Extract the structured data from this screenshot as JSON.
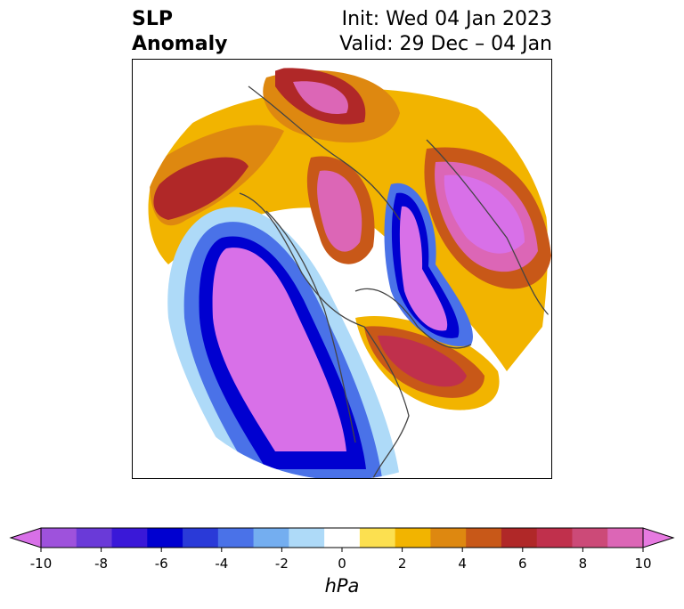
{
  "title": {
    "left_line1": "SLP",
    "left_line2": "Anomaly",
    "init": "Init: Wed 04 Jan 2023",
    "valid": "Valid: 29 Dec – 04 Jan"
  },
  "colorbar": {
    "units": "hPa",
    "range": [
      -10,
      10
    ],
    "ticks": [
      "-10",
      "-8",
      "-6",
      "-4",
      "-2",
      "0",
      "2",
      "4",
      "6",
      "8",
      "10"
    ],
    "colors": [
      "#d870e8",
      "#9e52dc",
      "#6a3ad8",
      "#3a18d8",
      "#0000d0",
      "#2a3ad8",
      "#4a72e8",
      "#74aef0",
      "#aedaf8",
      "#ffffff",
      "#fce050",
      "#f2b400",
      "#de8810",
      "#c85818",
      "#b02828",
      "#c0304c",
      "#cc4a78",
      "#dc66b6",
      "#e67ae0"
    ]
  }
}
